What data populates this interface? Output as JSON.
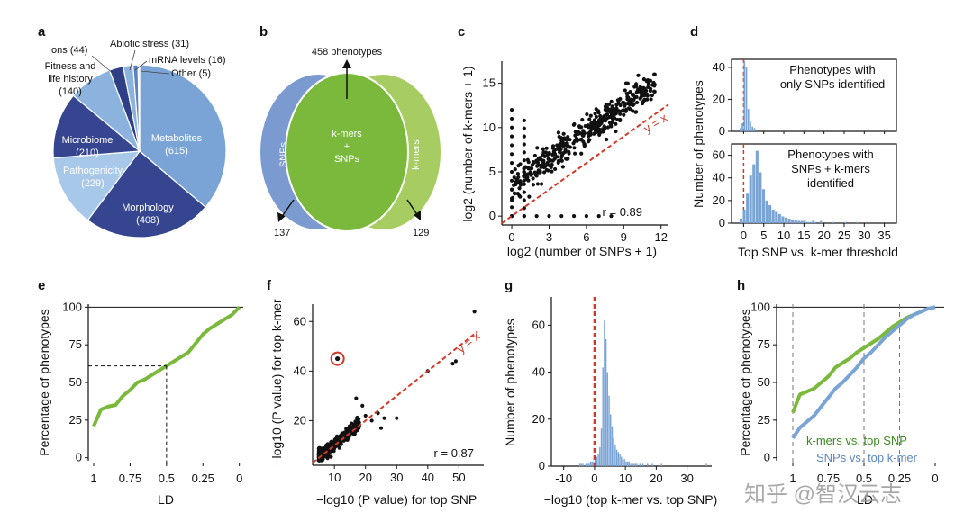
{
  "figure": {
    "watermark": "知乎 @智汉云志",
    "colors": {
      "dark_blue": "#36458f",
      "mid_blue": "#7aa4d6",
      "light_blue": "#a8c8ea",
      "green": "#7ab93c",
      "red": "#d03a2a",
      "navy": "#2f3f86"
    }
  },
  "chart_data": [
    {
      "panel": "a",
      "type": "pie",
      "slices": [
        {
          "label": "Metabolites",
          "value": 615,
          "display": "(615)"
        },
        {
          "label": "Morphology",
          "value": 408,
          "display": "(408)"
        },
        {
          "label": "Pathogenicity",
          "value": 229,
          "display": "(229)"
        },
        {
          "label": "Microbiome",
          "value": 210,
          "display": "(210)"
        },
        {
          "label": "Fitness and life history",
          "value": 140,
          "display": "(140)"
        },
        {
          "label": "Ions",
          "value": 44,
          "display": "Ions (44)"
        },
        {
          "label": "Abiotic stress",
          "value": 31,
          "display": "Abiotic stress (31)"
        },
        {
          "label": "mRNA levels",
          "value": 16,
          "display": "mRNA levels (16)"
        },
        {
          "label": "Other",
          "value": 5,
          "display": "Other (5)"
        }
      ],
      "fitness_lines": [
        "Fitness and",
        "life history",
        "(140)"
      ]
    },
    {
      "panel": "b",
      "type": "venn",
      "top": "458 phenotypes",
      "left_label": "SNPs",
      "right_label": "k-mers",
      "center_line1": "k-mers",
      "center_line2": "+",
      "center_line3": "SNPs",
      "left_count": "137",
      "right_count": "129"
    },
    {
      "panel": "c",
      "type": "scatter",
      "xlabel": "log2 (number of SNPs + 1)",
      "ylabel": "log2 (number of k-mers + 1)",
      "xticks": [
        0,
        3,
        6,
        9,
        12
      ],
      "yticks": [
        0,
        5,
        10,
        15
      ],
      "xlim": [
        -0.8,
        12.6
      ],
      "ylim": [
        -1,
        17.5
      ],
      "annotation": "r = 0.89",
      "line_label": "y = x"
    },
    {
      "panel": "d",
      "type": "bar",
      "top_title": [
        "Phenotypes with",
        "only SNPs identified"
      ],
      "bottom_title": [
        "Phenotypes with",
        "SNPs + k-mers",
        "identified"
      ],
      "top_yticks": [
        0,
        20,
        40
      ],
      "bottom_yticks": [
        0,
        20,
        40,
        60
      ],
      "xticks": [
        0,
        5,
        10,
        15,
        20,
        25,
        30,
        35
      ],
      "ylabel": "Number of phenotypes",
      "xlabel": "Top SNP vs. k-mer threshold",
      "top_values": [
        2,
        5,
        44,
        40,
        14,
        6,
        3,
        2
      ],
      "bottom_values": [
        4,
        12,
        26,
        42,
        52,
        64,
        45,
        30,
        20,
        16,
        12,
        10,
        8,
        6,
        5,
        4,
        3,
        3,
        2,
        2,
        1,
        1,
        1,
        1
      ]
    },
    {
      "panel": "e",
      "type": "line",
      "xlabel": "LD",
      "ylabel": "Percentage of phenotypes",
      "xticks": [
        "1",
        "0.75",
        "0.5",
        "0.25",
        "0"
      ],
      "yticks": [
        0,
        25,
        50,
        75,
        100
      ],
      "x": [
        1,
        0.95,
        0.9,
        0.85,
        0.8,
        0.75,
        0.7,
        0.65,
        0.6,
        0.55,
        0.5,
        0.45,
        0.4,
        0.35,
        0.3,
        0.25,
        0.2,
        0.15,
        0.1,
        0.05,
        0
      ],
      "y": [
        21,
        32,
        34,
        35,
        41,
        45,
        50,
        52,
        55,
        58,
        61,
        64,
        67,
        70,
        76,
        82,
        86,
        89,
        92,
        95,
        100
      ],
      "ref_x": 0.5,
      "ref_y": 61
    },
    {
      "panel": "f",
      "type": "scatter",
      "xlabel": "−log10 (P value) for top SNP",
      "ylabel": "−log10 (P value) for top k-mer",
      "xticks": [
        10,
        20,
        30,
        40,
        50
      ],
      "yticks": [
        20,
        40,
        60
      ],
      "xlim": [
        3,
        58
      ],
      "ylim": [
        2,
        67
      ],
      "annotation": "r = 0.87",
      "line_label": "y = x",
      "highlight": {
        "x": 11,
        "y": 45
      }
    },
    {
      "panel": "g",
      "type": "bar",
      "xlabel": "−log10 (top k-mer vs. top SNP)",
      "ylabel": "Number of phenotypes",
      "xticks": [
        -10,
        0,
        10,
        20,
        30
      ],
      "yticks": [
        0,
        20,
        40,
        60
      ],
      "xlim": [
        -14,
        38
      ],
      "ylim": [
        0,
        72
      ],
      "bins_start": -12,
      "bin_width": 0.5,
      "counts": [
        0,
        0,
        0,
        0,
        0,
        0,
        0,
        0,
        0,
        0,
        0,
        0,
        0,
        0,
        1,
        1,
        1,
        0,
        1,
        1,
        1,
        2,
        2,
        2,
        3,
        4,
        5,
        8,
        16,
        42,
        62,
        54,
        40,
        30,
        22,
        17,
        12,
        9,
        7,
        6,
        5,
        4,
        3,
        3,
        2,
        2,
        2,
        1,
        1,
        1,
        1,
        1,
        0,
        1,
        0,
        1,
        0,
        0,
        1,
        0,
        0,
        1,
        0,
        0,
        0,
        0,
        0,
        1,
        0,
        0,
        0,
        0,
        0,
        0,
        0,
        0,
        0,
        0,
        0,
        0,
        0,
        0,
        0,
        0,
        0,
        0,
        0,
        0,
        0,
        0,
        0,
        0,
        0,
        0,
        0,
        0,
        1
      ]
    },
    {
      "panel": "h",
      "type": "line",
      "xlabel": "LD",
      "ylabel": "Percentage of phenotypes",
      "xticks": [
        "1",
        "0.75",
        "0.5",
        "0.25",
        "0"
      ],
      "yticks": [
        0,
        25,
        50,
        75,
        100
      ],
      "series": [
        {
          "name": "k-mers vs. top SNP",
          "color": "#7ab93c",
          "x": [
            1,
            0.95,
            0.9,
            0.85,
            0.8,
            0.75,
            0.7,
            0.65,
            0.6,
            0.55,
            0.5,
            0.45,
            0.4,
            0.35,
            0.3,
            0.25,
            0.2,
            0.15,
            0.1,
            0.05,
            0
          ],
          "y": [
            30,
            42,
            44,
            46,
            50,
            54,
            60,
            63,
            66,
            70,
            73,
            76,
            79,
            83,
            87,
            90,
            93,
            95,
            97,
            99,
            100
          ]
        },
        {
          "name": "SNPs vs. top k-mer",
          "color": "#7aa4d6",
          "x": [
            1,
            0.95,
            0.9,
            0.85,
            0.8,
            0.75,
            0.7,
            0.65,
            0.6,
            0.55,
            0.5,
            0.45,
            0.4,
            0.35,
            0.3,
            0.25,
            0.2,
            0.15,
            0.1,
            0.05,
            0
          ],
          "y": [
            13,
            20,
            24,
            28,
            34,
            40,
            46,
            50,
            55,
            60,
            66,
            70,
            75,
            80,
            84,
            88,
            92,
            95,
            97,
            99,
            100
          ]
        }
      ],
      "ref_lines": [
        1,
        0.5,
        0.25
      ]
    }
  ]
}
